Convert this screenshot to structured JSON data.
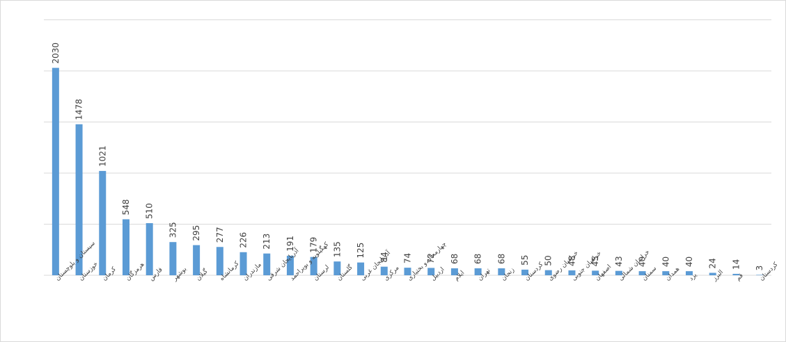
{
  "chart_data": {
    "type": "bar",
    "title": "",
    "xlabel": "",
    "ylabel": "",
    "ylim": [
      0,
      2500
    ],
    "grid": true,
    "legend": "none",
    "bar_color": "#5b9bd5",
    "categories": [
      "سیستان و بلوچستان",
      "خوزستان",
      "کرمان",
      "هرمزگان",
      "فارس",
      "بوشهر",
      "گیلان",
      "کرمانشاه",
      "مازندران",
      "آذربایجان شرقی",
      "کهگیلویه و بویراحمد",
      "لرستان",
      "گلستان",
      "آذربایجان غربی",
      "مرکزی",
      "چهارمحال و بختیاری",
      "اردبیل",
      "ایلام",
      "تهران",
      "زنجان",
      "کردستان",
      "خراسان رضوی",
      "خراسان جنوبی",
      "اصفهان",
      "خراسان شمالی",
      "سمنان",
      "همدان",
      "یزد",
      "البرز",
      "قم",
      "کردستان"
    ],
    "values": [
      2030,
      1478,
      1021,
      548,
      510,
      325,
      295,
      277,
      226,
      213,
      191,
      179,
      135,
      125,
      84,
      74,
      72,
      68,
      68,
      68,
      55,
      50,
      48,
      45,
      43,
      40,
      40,
      40,
      24,
      14,
      3
    ]
  }
}
